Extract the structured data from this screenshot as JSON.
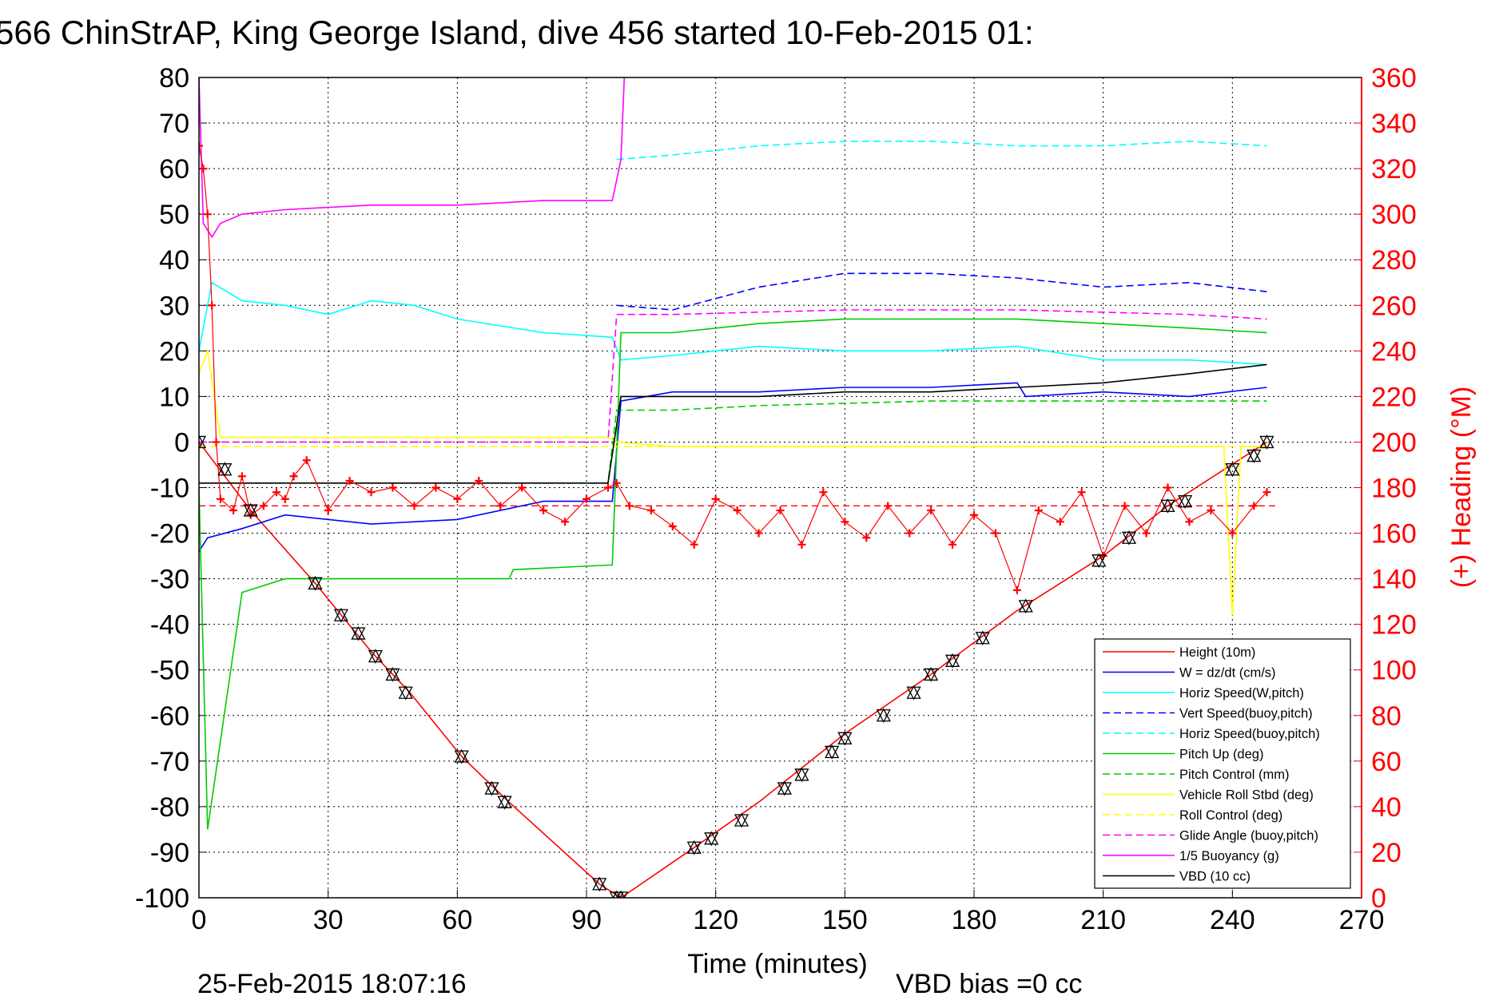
{
  "chart_data": {
    "type": "line",
    "title": "566 ChinStrAP, King George Island, dive 456 started 10-Feb-2015 01:",
    "xlabel": "Time (minutes)",
    "ylabel": "",
    "y2label": "(+) Heading (°M)",
    "xlim": [
      0,
      270
    ],
    "ylim": [
      -100,
      80
    ],
    "y2lim": [
      0,
      360
    ],
    "x_ticks": [
      "0",
      "30",
      "60",
      "90",
      "120",
      "150",
      "180",
      "210",
      "240",
      "270"
    ],
    "y_ticks": [
      "80",
      "70",
      "60",
      "50",
      "40",
      "30",
      "20",
      "10",
      "0",
      "-10",
      "-20",
      "-30",
      "-40",
      "-50",
      "-60",
      "-70",
      "-80",
      "-90",
      "-100"
    ],
    "y2_ticks": [
      "360",
      "340",
      "320",
      "300",
      "280",
      "260",
      "240",
      "220",
      "200",
      "180",
      "160",
      "140",
      "120",
      "100",
      "80",
      "60",
      "40",
      "20",
      "0"
    ],
    "grid": true,
    "legend_position": "bottom-right",
    "series": [
      {
        "name": "Height (10m)",
        "color": "#ff0000",
        "style": "solid",
        "x": [
          0,
          12,
          27,
          40,
          49,
          61,
          72,
          93,
          98,
          115,
          130,
          150,
          170,
          190,
          210,
          225,
          248
        ],
        "y": [
          0,
          -15,
          -31,
          -46,
          -55,
          -69,
          -79,
          -97,
          -100,
          -89,
          -79,
          -64,
          -51,
          -37,
          -25,
          -14,
          0
        ]
      },
      {
        "name": "W = dz/dt (cm/s)",
        "color": "#0000ff",
        "style": "solid",
        "x": [
          0,
          2,
          10,
          20,
          40,
          60,
          80,
          96,
          98,
          110,
          130,
          150,
          170,
          190,
          192,
          210,
          230,
          248
        ],
        "y": [
          -24,
          -21,
          -19,
          -16,
          -18,
          -17,
          -13,
          -13,
          9,
          11,
          11,
          12,
          12,
          13,
          10,
          11,
          10,
          12
        ]
      },
      {
        "name": "Horiz Speed(W,pitch)",
        "color": "#00ffff",
        "style": "solid",
        "x": [
          0,
          3,
          10,
          20,
          30,
          40,
          50,
          60,
          80,
          96,
          98,
          110,
          130,
          150,
          170,
          190,
          210,
          230,
          248
        ],
        "y": [
          20,
          35,
          31,
          30,
          28,
          31,
          30,
          27,
          24,
          23,
          18,
          19,
          21,
          20,
          20,
          21,
          18,
          18,
          17
        ]
      },
      {
        "name": "Vert Speed(buoy,pitch)",
        "color": "#0000ff",
        "style": "dashed",
        "x": [
          97,
          110,
          130,
          150,
          170,
          190,
          210,
          230,
          248
        ],
        "y": [
          30,
          29,
          34,
          37,
          37,
          36,
          34,
          35,
          33
        ]
      },
      {
        "name": "Horiz Speed(buoy,pitch)",
        "color": "#00ffff",
        "style": "dashed",
        "x": [
          97,
          110,
          130,
          150,
          170,
          190,
          210,
          230,
          248
        ],
        "y": [
          62,
          63,
          65,
          66,
          66,
          65,
          65,
          66,
          65
        ]
      },
      {
        "name": "Pitch Up (deg)",
        "color": "#00cc00",
        "style": "solid",
        "x": [
          0,
          2,
          10,
          20,
          40,
          72,
          73,
          95,
          96,
          98,
          110,
          130,
          150,
          170,
          190,
          210,
          230,
          248
        ],
        "y": [
          -10,
          -85,
          -33,
          -30,
          -30,
          -30,
          -28,
          -27,
          -27,
          24,
          24,
          26,
          27,
          27,
          27,
          26,
          25,
          24
        ]
      },
      {
        "name": "Pitch Control (mm)",
        "color": "#00cc00",
        "style": "dashed",
        "x": [
          0,
          95,
          97,
          110,
          130,
          170,
          210,
          248
        ],
        "y": [
          -9,
          -9,
          7,
          7,
          8,
          9,
          9,
          9
        ]
      },
      {
        "name": "Vehicle Roll Stbd (deg)",
        "color": "#ffff00",
        "style": "solid",
        "x": [
          0,
          2,
          5,
          30,
          60,
          95,
          97,
          110,
          150,
          190,
          230,
          238,
          240,
          242,
          248
        ],
        "y": [
          15,
          20,
          1,
          1,
          1,
          1,
          0,
          -1,
          -1,
          -1,
          -1,
          -1,
          -38,
          -1,
          -1
        ]
      },
      {
        "name": "Roll Control (deg)",
        "color": "#ffff00",
        "style": "dashed",
        "x": [
          0,
          248
        ],
        "y": [
          -1,
          -1
        ]
      },
      {
        "name": "Glide Angle (buoy,pitch)",
        "color": "#ff00ff",
        "style": "dashed",
        "x": [
          0,
          95,
          97,
          110,
          150,
          190,
          230,
          248
        ],
        "y": [
          0,
          0,
          28,
          28,
          29,
          29,
          28,
          27
        ]
      },
      {
        "name": "1/5 Buoyancy (g)",
        "color": "#ff00ff",
        "style": "solid",
        "x": [
          0,
          1,
          3,
          5,
          10,
          20,
          40,
          60,
          80,
          96,
          98,
          99
        ],
        "y": [
          80,
          48,
          45,
          48,
          50,
          51,
          52,
          52,
          53,
          53,
          62,
          85
        ]
      },
      {
        "name": "VBD (10 cc)",
        "color": "#000000",
        "style": "solid",
        "x": [
          0,
          95,
          98,
          110,
          130,
          150,
          170,
          190,
          210,
          230,
          248
        ],
        "y": [
          -9,
          -9,
          10,
          10,
          10,
          11,
          11,
          12,
          13,
          15,
          17
        ]
      }
    ],
    "heading_series": {
      "name": "Heading",
      "color": "#ff0000",
      "marker": "+",
      "axis": "right",
      "x": [
        0,
        1,
        2,
        3,
        4,
        5,
        8,
        10,
        12,
        15,
        18,
        20,
        22,
        25,
        30,
        35,
        40,
        45,
        50,
        55,
        60,
        65,
        70,
        75,
        80,
        85,
        90,
        95,
        97,
        100,
        105,
        110,
        115,
        120,
        125,
        130,
        135,
        140,
        145,
        150,
        155,
        160,
        165,
        170,
        175,
        180,
        185,
        190,
        195,
        200,
        205,
        210,
        215,
        220,
        225,
        230,
        235,
        240,
        245,
        248
      ],
      "y": [
        330,
        320,
        300,
        260,
        200,
        175,
        170,
        185,
        168,
        172,
        178,
        175,
        185,
        192,
        170,
        183,
        178,
        180,
        172,
        180,
        175,
        183,
        172,
        180,
        170,
        165,
        175,
        180,
        182,
        172,
        170,
        163,
        155,
        175,
        170,
        160,
        170,
        155,
        178,
        165,
        158,
        172,
        160,
        170,
        155,
        168,
        160,
        135,
        170,
        165,
        178,
        150,
        172,
        160,
        180,
        165,
        170,
        160,
        172,
        178
      ]
    },
    "reference_lines": [
      {
        "axis": "right",
        "value": 172,
        "color": "#ff0000",
        "style": "dashed"
      }
    ],
    "depth_markers": {
      "marker": "triangle",
      "color": "#000000",
      "x": [
        0,
        6,
        12,
        27,
        33,
        37,
        41,
        45,
        48,
        61,
        68,
        71,
        93,
        97,
        98,
        115,
        119,
        126,
        136,
        140,
        147,
        150,
        159,
        166,
        170,
        175,
        182,
        192,
        209,
        216,
        225,
        229,
        240,
        245,
        248
      ],
      "y": [
        0,
        -6,
        -15,
        -31,
        -38,
        -42,
        -47,
        -51,
        -55,
        -69,
        -76,
        -79,
        -97,
        -100,
        -100,
        -89,
        -87,
        -83,
        -76,
        -73,
        -68,
        -65,
        -60,
        -55,
        -51,
        -48,
        -43,
        -36,
        -26,
        -21,
        -14,
        -13,
        -6,
        -3,
        0
      ]
    }
  },
  "footer": {
    "timestamp": "25-Feb-2015 18:07:16",
    "vbd_bias": "VBD bias =0 cc"
  }
}
